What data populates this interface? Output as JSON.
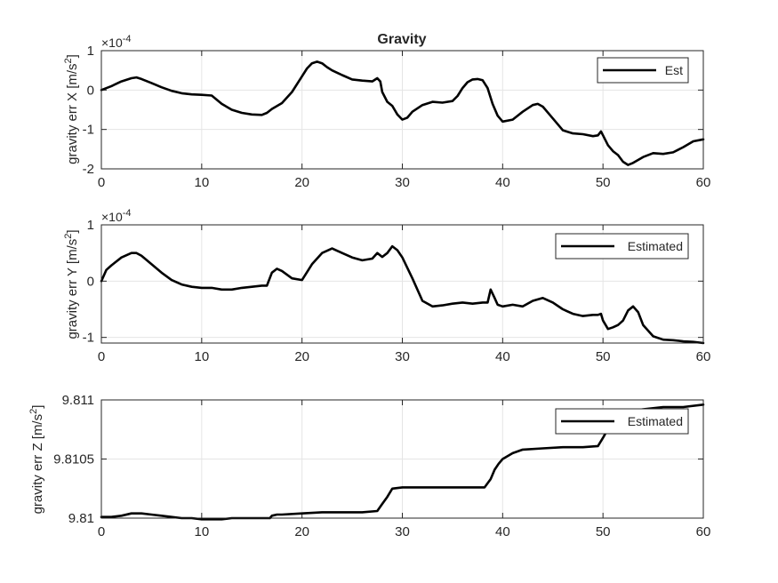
{
  "chart_data": [
    {
      "type": "line",
      "title": "Gravity",
      "ylabel": "gravity err X [m/s",
      "ylabel_sup": "2",
      "ylabel_end": "]",
      "exponent_base": "×10",
      "exponent_power": "-4",
      "xlim": [
        0,
        60
      ],
      "ylim": [
        -2,
        1
      ],
      "xticks": [
        0,
        10,
        20,
        30,
        40,
        50,
        60
      ],
      "yticks": [
        -2,
        -1,
        0,
        1
      ],
      "xtick_labels": [
        "0",
        "10",
        "20",
        "30",
        "40",
        "50",
        "60"
      ],
      "ytick_labels": [
        "-2",
        "-1",
        "0",
        "1"
      ],
      "grid": true,
      "legend_position": "top-right",
      "series": [
        {
          "name": "Est",
          "color": "#000000",
          "x": [
            0,
            1,
            2,
            3,
            3.5,
            4,
            5,
            6,
            7,
            8,
            9,
            10,
            11,
            12,
            13,
            14,
            15,
            16,
            16.5,
            17,
            18,
            19,
            20,
            20.5,
            21,
            21.5,
            22,
            22.5,
            23,
            24,
            25,
            26,
            27,
            27.5,
            27.8,
            28,
            28.5,
            29,
            29.5,
            30,
            30.5,
            31,
            32,
            33,
            34,
            35,
            35.5,
            36,
            36.5,
            37,
            37.5,
            38,
            38.5,
            39,
            39.5,
            40,
            41,
            42,
            43,
            43.5,
            44,
            45,
            46,
            47,
            48,
            49,
            49.5,
            49.8,
            50,
            50.5,
            51,
            51.5,
            52,
            52.5,
            53,
            54,
            55,
            56,
            57,
            58,
            59,
            60
          ],
          "y": [
            0.0,
            0.1,
            0.22,
            0.3,
            0.32,
            0.28,
            0.18,
            0.07,
            -0.02,
            -0.08,
            -0.11,
            -0.12,
            -0.14,
            -0.35,
            -0.5,
            -0.58,
            -0.62,
            -0.63,
            -0.58,
            -0.48,
            -0.33,
            -0.05,
            0.35,
            0.55,
            0.68,
            0.72,
            0.68,
            0.58,
            0.5,
            0.38,
            0.27,
            0.24,
            0.22,
            0.3,
            0.22,
            -0.05,
            -0.3,
            -0.4,
            -0.62,
            -0.75,
            -0.7,
            -0.55,
            -0.38,
            -0.3,
            -0.32,
            -0.28,
            -0.15,
            0.05,
            0.2,
            0.27,
            0.28,
            0.25,
            0.05,
            -0.35,
            -0.65,
            -0.8,
            -0.75,
            -0.55,
            -0.38,
            -0.35,
            -0.42,
            -0.72,
            -1.02,
            -1.1,
            -1.12,
            -1.17,
            -1.15,
            -1.05,
            -1.15,
            -1.4,
            -1.55,
            -1.65,
            -1.82,
            -1.9,
            -1.85,
            -1.7,
            -1.6,
            -1.62,
            -1.58,
            -1.45,
            -1.3,
            -1.25
          ]
        }
      ]
    },
    {
      "type": "line",
      "ylabel": "gravity err Y [m/s",
      "ylabel_sup": "2",
      "ylabel_end": "]",
      "exponent_base": "×10",
      "exponent_power": "-4",
      "xlim": [
        0,
        60
      ],
      "ylim": [
        -1.1,
        1
      ],
      "xticks": [
        0,
        10,
        20,
        30,
        40,
        50,
        60
      ],
      "yticks": [
        -1,
        0,
        1
      ],
      "xtick_labels": [
        "0",
        "10",
        "20",
        "30",
        "40",
        "50",
        "60"
      ],
      "ytick_labels": [
        "-1",
        "0",
        "1"
      ],
      "grid": true,
      "legend_position": "top-right",
      "series": [
        {
          "name": "Estimated",
          "color": "#000000",
          "x": [
            0,
            0.5,
            1,
            2,
            3,
            3.5,
            4,
            5,
            6,
            7,
            8,
            9,
            10,
            11,
            12,
            13,
            14,
            15,
            16,
            16.5,
            17,
            17.5,
            18,
            19,
            20,
            21,
            22,
            23,
            24,
            25,
            26,
            27,
            27.5,
            28,
            28.5,
            29,
            29.5,
            30,
            31,
            32,
            33,
            34,
            35,
            36,
            37,
            38,
            38.5,
            38.8,
            39.2,
            39.5,
            40,
            41,
            42,
            43,
            44,
            45,
            46,
            47,
            48,
            49,
            49.5,
            49.8,
            50,
            50.5,
            51,
            51.5,
            52,
            52.5,
            53,
            53.5,
            54,
            55,
            56,
            57,
            58,
            59,
            60
          ],
          "y": [
            0.0,
            0.2,
            0.28,
            0.42,
            0.5,
            0.5,
            0.45,
            0.3,
            0.15,
            0.02,
            -0.06,
            -0.1,
            -0.12,
            -0.12,
            -0.15,
            -0.15,
            -0.12,
            -0.1,
            -0.08,
            -0.08,
            0.15,
            0.22,
            0.18,
            0.05,
            0.02,
            0.3,
            0.5,
            0.58,
            0.5,
            0.42,
            0.37,
            0.4,
            0.5,
            0.43,
            0.5,
            0.62,
            0.55,
            0.42,
            0.05,
            -0.35,
            -0.45,
            -0.43,
            -0.4,
            -0.38,
            -0.4,
            -0.38,
            -0.38,
            -0.15,
            -0.3,
            -0.42,
            -0.45,
            -0.42,
            -0.45,
            -0.35,
            -0.3,
            -0.38,
            -0.5,
            -0.58,
            -0.62,
            -0.6,
            -0.6,
            -0.58,
            -0.7,
            -0.85,
            -0.82,
            -0.78,
            -0.7,
            -0.52,
            -0.45,
            -0.55,
            -0.78,
            -0.98,
            -1.04,
            -1.05,
            -1.07,
            -1.08,
            -1.1
          ]
        }
      ]
    },
    {
      "type": "line",
      "ylabel": "gravity err Z [m/s",
      "ylabel_sup": "2",
      "ylabel_end": "]",
      "xlim": [
        0,
        60
      ],
      "ylim": [
        9.81,
        9.811
      ],
      "xticks": [
        0,
        10,
        20,
        30,
        40,
        50,
        60
      ],
      "yticks": [
        9.81,
        9.8105,
        9.811
      ],
      "xtick_labels": [
        "0",
        "10",
        "20",
        "30",
        "40",
        "50",
        "60"
      ],
      "ytick_labels": [
        "9.81",
        "9.8105",
        "9.811"
      ],
      "grid": true,
      "legend_position": "top-right",
      "series": [
        {
          "name": "Estimated",
          "color": "#000000",
          "x": [
            0,
            1,
            2,
            3,
            3.5,
            4,
            5,
            6,
            7,
            8,
            9,
            10,
            11,
            12,
            13,
            14,
            15,
            16,
            16.8,
            17,
            17.5,
            18,
            20,
            22,
            24,
            26,
            27.5,
            28,
            28.5,
            29,
            30,
            32,
            34,
            36,
            37,
            38.2,
            38.8,
            39.2,
            39.6,
            40,
            41,
            42,
            44,
            46,
            48,
            49.5,
            50,
            51,
            52,
            53,
            54,
            56,
            58,
            60
          ],
          "y": [
            9.81001,
            9.81001,
            9.81002,
            9.81004,
            9.81004,
            9.81004,
            9.81003,
            9.81002,
            9.81001,
            9.81,
            9.81,
            9.80999,
            9.80999,
            9.80999,
            9.81,
            9.81,
            9.81,
            9.81,
            9.81,
            9.81002,
            9.81003,
            9.81003,
            9.81004,
            9.81005,
            9.81005,
            9.81005,
            9.81006,
            9.81012,
            9.81018,
            9.81025,
            9.81026,
            9.81026,
            9.81026,
            9.81026,
            9.81026,
            9.81026,
            9.81033,
            9.81041,
            9.81046,
            9.8105,
            9.81055,
            9.81058,
            9.81059,
            9.8106,
            9.8106,
            9.81061,
            9.81068,
            9.81083,
            9.81088,
            9.81091,
            9.81092,
            9.81094,
            9.81094,
            9.81096
          ]
        }
      ]
    }
  ]
}
